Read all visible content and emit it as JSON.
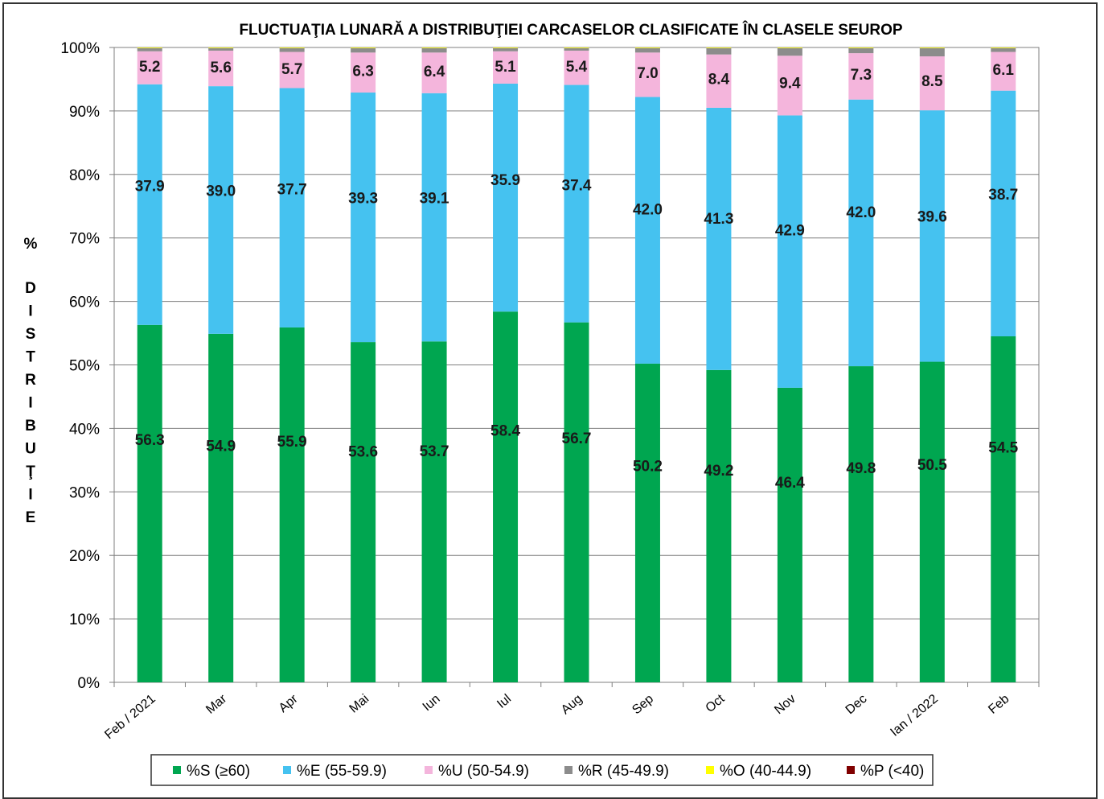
{
  "chart_data": {
    "type": "bar",
    "stacked": true,
    "title": "FLUCTUAŢIA LUNARĂ  A DISTRIBUŢIEI  CARCASELOR CLASIFICATE ÎN CLASELE SEUROP",
    "ylabel": "% DISTRIBUŢIE",
    "ylim": [
      0,
      100
    ],
    "yticks": [
      "0%",
      "10%",
      "20%",
      "30%",
      "40%",
      "50%",
      "60%",
      "70%",
      "80%",
      "90%",
      "100%"
    ],
    "grid": true,
    "legend_position": "bottom",
    "categories": [
      "Feb / 2021",
      "Mar",
      "Apr",
      "Mai",
      "Iun",
      "Iul",
      "Aug",
      "Sep",
      "Oct",
      "Nov",
      "Dec",
      "Ian / 2022",
      "Feb"
    ],
    "series": [
      {
        "name": "%S (≥60)",
        "color": "#00a650",
        "values": [
          56.3,
          54.9,
          55.9,
          53.6,
          53.7,
          58.4,
          56.7,
          50.2,
          49.2,
          46.4,
          49.8,
          50.5,
          54.5
        ]
      },
      {
        "name": "%E (55-59.9)",
        "color": "#45c2f0",
        "values": [
          37.9,
          39.0,
          37.7,
          39.3,
          39.1,
          35.9,
          37.4,
          42.0,
          41.3,
          42.9,
          42.0,
          39.6,
          38.7
        ]
      },
      {
        "name": "%U (50-54.9)",
        "color": "#f4b5dc",
        "values": [
          5.2,
          5.6,
          5.7,
          6.3,
          6.4,
          5.1,
          5.4,
          7.0,
          8.4,
          9.4,
          7.3,
          8.5,
          6.1
        ]
      },
      {
        "name": "%R (45-49.9)",
        "color": "#8c8c8c",
        "values": [
          0.5,
          0.4,
          0.6,
          0.7,
          0.7,
          0.5,
          0.4,
          0.7,
          1.0,
          1.2,
          0.8,
          1.3,
          0.6
        ]
      },
      {
        "name": "%O (40-44.9)",
        "color": "#ffff00",
        "values": [
          0.1,
          0.1,
          0.1,
          0.1,
          0.1,
          0.1,
          0.1,
          0.1,
          0.1,
          0.1,
          0.1,
          0.1,
          0.1
        ]
      },
      {
        "name": "%P (<40)",
        "color": "#800000",
        "values": [
          0,
          0,
          0,
          0,
          0,
          0,
          0,
          0,
          0,
          0,
          0,
          0,
          0
        ]
      }
    ],
    "labeled_series": [
      0,
      1,
      2
    ]
  }
}
